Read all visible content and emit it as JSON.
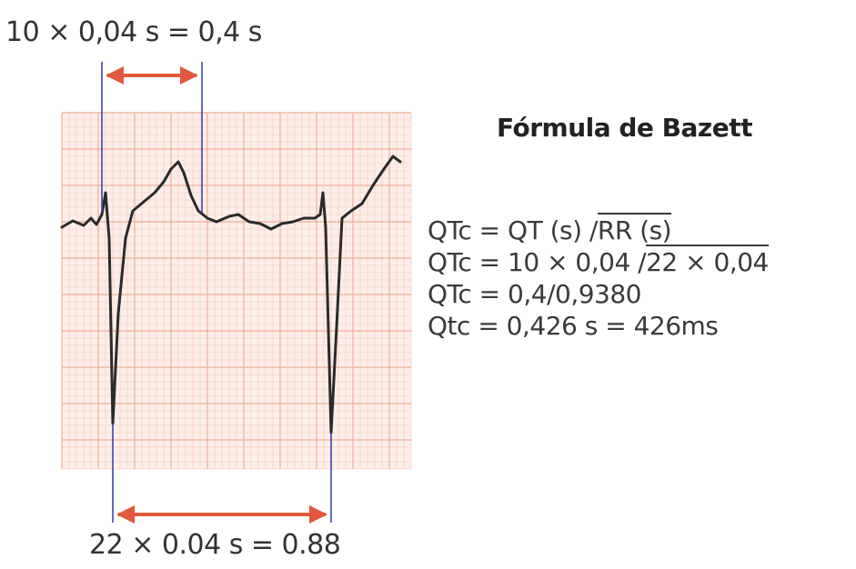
{
  "qt_measure": {
    "label": "10 × 0,04 s = 0,4 s"
  },
  "rr_measure": {
    "label": "22 × 0.04 s = 0.88"
  },
  "bazett": {
    "title": "Fórmula de Bazett",
    "lines": [
      {
        "prefix": "QTc = QT (s) /",
        "radicand": "RR (s)"
      },
      {
        "prefix": "QTc = 10 × 0,04 /",
        "radicand": "22 × 0,04"
      },
      {
        "prefix": "QTc = 0,4/0,9380",
        "radicand": ""
      },
      {
        "prefix": "Qtc = 0,426 s = 426ms",
        "radicand": ""
      }
    ]
  },
  "colors": {
    "grid_fill": "#fdeee9",
    "grid_minor": "#f7c9b8",
    "grid_major": "#eeae98",
    "marker_line": "#3b44b0",
    "arrow": "#e2573d",
    "ecg_trace": "#2a2a2a"
  }
}
